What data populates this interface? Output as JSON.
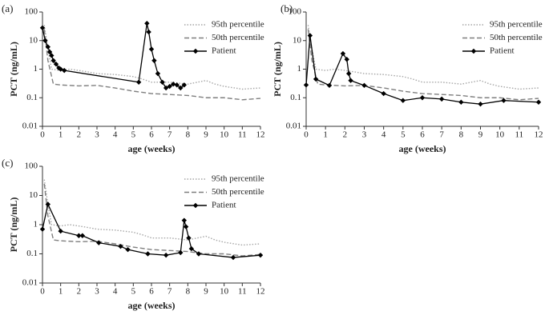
{
  "chart_data": [
    {
      "type": "line",
      "panel_label": "(a)",
      "x_label": "age (weeks)",
      "y_label": "PCT (ng/mL)",
      "xlim": [
        0,
        12
      ],
      "xticks": [
        0,
        1,
        2,
        3,
        4,
        5,
        6,
        7,
        8,
        9,
        10,
        11,
        12
      ],
      "ylim": [
        0.01,
        100
      ],
      "yticks": [
        0.01,
        0.1,
        1,
        10,
        100
      ],
      "log_y": true,
      "legend": "upper right",
      "series": [
        {
          "name": "95th percentile",
          "color": "#a6a6a6",
          "line_style": "dotted",
          "marker": "none",
          "x": [
            0.1,
            0.3,
            0.5,
            1,
            1.5,
            2,
            2.5,
            3,
            4,
            5,
            5.5,
            6,
            7,
            8,
            9,
            9.5,
            10,
            11,
            12
          ],
          "values": [
            35,
            5,
            1,
            0.9,
            1.0,
            0.9,
            0.8,
            0.7,
            0.65,
            0.55,
            0.45,
            0.35,
            0.35,
            0.3,
            0.4,
            0.3,
            0.25,
            0.2,
            0.22
          ]
        },
        {
          "name": "50th percentile",
          "color": "#7f7f7f",
          "line_style": "dashed",
          "marker": "none",
          "x": [
            0.1,
            0.3,
            0.6,
            1,
            2,
            3,
            4,
            5,
            6,
            7,
            8,
            9,
            10,
            11,
            12
          ],
          "values": [
            25,
            2,
            0.3,
            0.28,
            0.26,
            0.27,
            0.22,
            0.17,
            0.14,
            0.13,
            0.12,
            0.1,
            0.1,
            0.085,
            0.095
          ]
        },
        {
          "name": "Patient",
          "color": "#000000",
          "line_style": "solid",
          "marker": "diamond",
          "x": [
            0,
            0.15,
            0.3,
            0.4,
            0.5,
            0.6,
            0.75,
            0.9,
            1.0,
            1.2,
            5.3,
            5.75,
            5.85,
            6.0,
            6.15,
            6.35,
            6.6,
            6.8,
            7.0,
            7.2,
            7.4,
            7.6,
            7.8
          ],
          "values": [
            28,
            10,
            6,
            4,
            3,
            2,
            1.5,
            1.1,
            1.0,
            0.9,
            0.35,
            40,
            20,
            5,
            2,
            0.7,
            0.35,
            0.22,
            0.25,
            0.3,
            0.28,
            0.22,
            0.28
          ]
        }
      ]
    },
    {
      "type": "line",
      "panel_label": "(b)",
      "x_label": "age (weeks)",
      "y_label": "PCT (ng/mL)",
      "xlim": [
        0,
        12
      ],
      "xticks": [
        0,
        1,
        2,
        3,
        4,
        5,
        6,
        7,
        8,
        9,
        10,
        11,
        12
      ],
      "ylim": [
        0.01,
        100
      ],
      "yticks": [
        0.01,
        0.1,
        1,
        10,
        100
      ],
      "log_y": true,
      "legend": "upper right",
      "series": [
        {
          "name": "95th percentile",
          "color": "#a6a6a6",
          "line_style": "dotted",
          "marker": "none",
          "x": [
            0.1,
            0.3,
            0.5,
            1,
            1.5,
            2,
            2.5,
            3,
            4,
            5,
            5.5,
            6,
            7,
            8,
            9,
            9.5,
            10,
            11,
            12
          ],
          "values": [
            35,
            5,
            1,
            0.9,
            1.0,
            0.9,
            0.8,
            0.7,
            0.65,
            0.55,
            0.45,
            0.35,
            0.35,
            0.3,
            0.4,
            0.3,
            0.25,
            0.2,
            0.22
          ]
        },
        {
          "name": "50th percentile",
          "color": "#7f7f7f",
          "line_style": "dashed",
          "marker": "none",
          "x": [
            0.1,
            0.3,
            0.6,
            1,
            2,
            3,
            4,
            5,
            6,
            7,
            8,
            9,
            10,
            11,
            12
          ],
          "values": [
            25,
            2,
            0.3,
            0.28,
            0.26,
            0.27,
            0.22,
            0.17,
            0.14,
            0.13,
            0.12,
            0.1,
            0.1,
            0.085,
            0.095
          ]
        },
        {
          "name": "Patient",
          "color": "#000000",
          "line_style": "solid",
          "marker": "diamond",
          "x": [
            0,
            0.2,
            0.5,
            1.2,
            1.9,
            2.1,
            2.2,
            2.3,
            3,
            4,
            5,
            6,
            7,
            8,
            9,
            10.2,
            12
          ],
          "values": [
            0.28,
            15,
            0.45,
            0.27,
            3.5,
            2.2,
            0.7,
            0.4,
            0.27,
            0.14,
            0.08,
            0.1,
            0.09,
            0.07,
            0.06,
            0.08,
            0.07
          ]
        }
      ]
    },
    {
      "type": "line",
      "panel_label": "(c)",
      "x_label": "age (weeks)",
      "y_label": "PCT (ng/mL)",
      "xlim": [
        0,
        12
      ],
      "xticks": [
        0,
        1,
        2,
        3,
        4,
        5,
        6,
        7,
        8,
        9,
        10,
        11,
        12
      ],
      "ylim": [
        0.01,
        100
      ],
      "yticks": [
        0.01,
        0.1,
        1,
        10,
        100
      ],
      "log_y": true,
      "legend": "upper right",
      "series": [
        {
          "name": "95th percentile",
          "color": "#a6a6a6",
          "line_style": "dotted",
          "marker": "none",
          "x": [
            0.1,
            0.3,
            0.5,
            1,
            1.5,
            2,
            2.5,
            3,
            4,
            5,
            5.5,
            6,
            7,
            8,
            9,
            9.5,
            10,
            11,
            12
          ],
          "values": [
            35,
            5,
            1,
            0.9,
            1.0,
            0.9,
            0.8,
            0.7,
            0.65,
            0.55,
            0.45,
            0.35,
            0.35,
            0.3,
            0.4,
            0.3,
            0.25,
            0.2,
            0.22
          ]
        },
        {
          "name": "50th percentile",
          "color": "#7f7f7f",
          "line_style": "dashed",
          "marker": "none",
          "x": [
            0.1,
            0.3,
            0.6,
            1,
            2,
            3,
            4,
            5,
            6,
            7,
            8,
            9,
            10,
            11,
            12
          ],
          "values": [
            25,
            2,
            0.3,
            0.28,
            0.26,
            0.27,
            0.22,
            0.17,
            0.14,
            0.13,
            0.12,
            0.1,
            0.1,
            0.085,
            0.095
          ]
        },
        {
          "name": "Patient",
          "color": "#000000",
          "line_style": "solid",
          "marker": "diamond",
          "x": [
            0,
            0.3,
            1,
            2,
            2.2,
            3.1,
            4.3,
            4.7,
            5.8,
            6.8,
            7.6,
            7.8,
            7.9,
            8.05,
            8.2,
            8.6,
            10.5,
            12
          ],
          "values": [
            0.7,
            5,
            0.6,
            0.42,
            0.42,
            0.24,
            0.18,
            0.14,
            0.1,
            0.09,
            0.11,
            1.4,
            0.85,
            0.35,
            0.15,
            0.1,
            0.075,
            0.09
          ]
        }
      ]
    }
  ]
}
